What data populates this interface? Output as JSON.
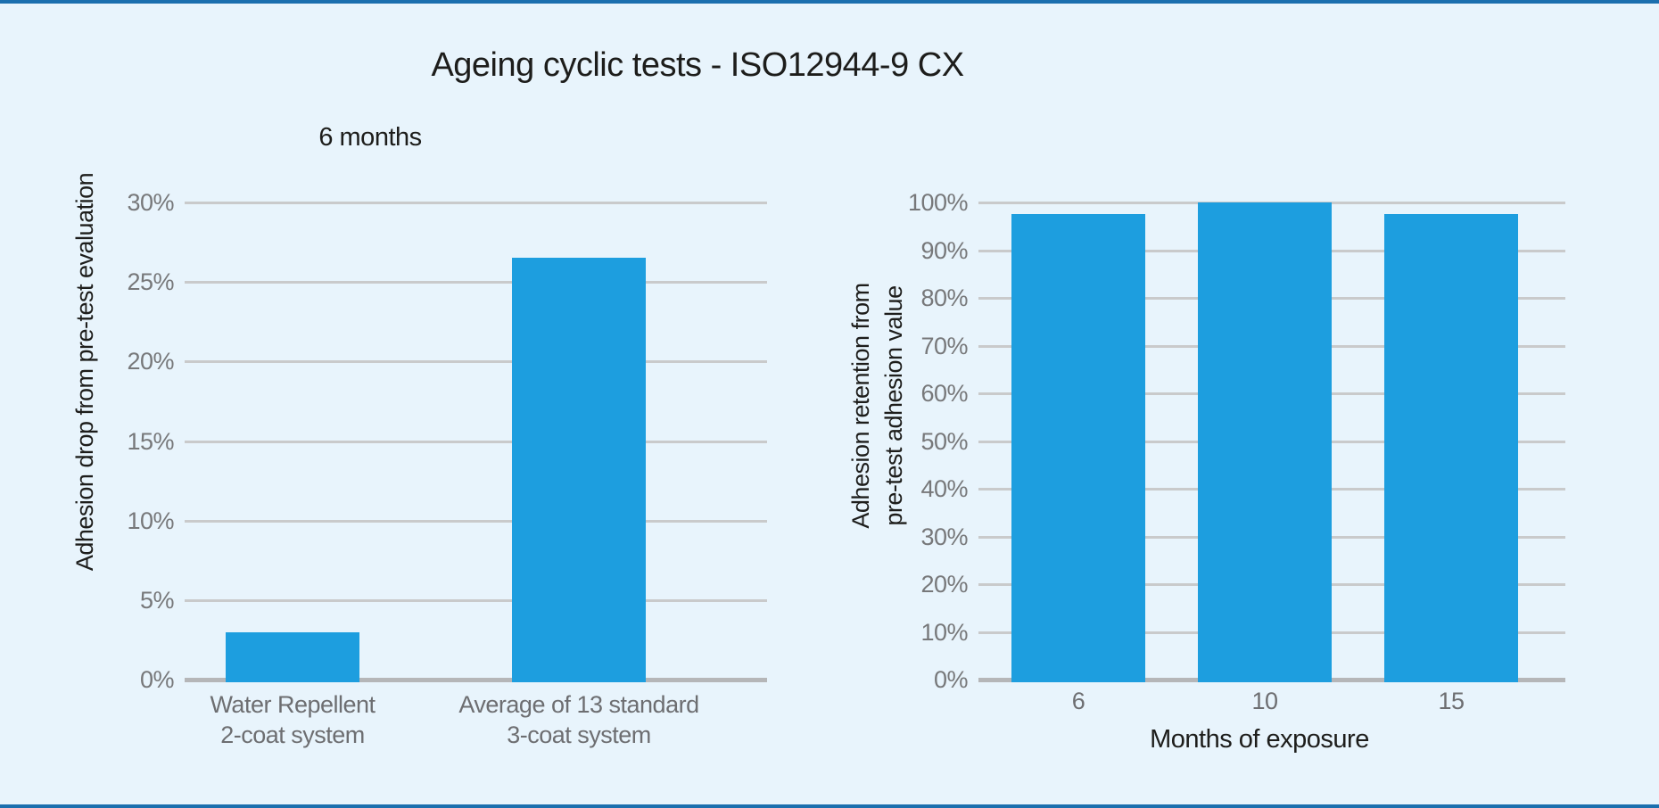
{
  "title": "Ageing cyclic tests - ISO12944-9 CX",
  "colors": {
    "background": "#e8f4fc",
    "bar": "#1d9edf",
    "gridline": "#c9cacb",
    "axis_line": "#b5b6b8",
    "tick_text": "#77787a",
    "category_text": "#6d6e71",
    "dark_text": "#1d1d1b",
    "frame_border": "#1b6fae"
  },
  "chart_data": [
    {
      "type": "bar",
      "title": "6 months",
      "xlabel": "",
      "ylabel": "Adhesion drop from pre-test evaluation",
      "categories": [
        "Water Repellent\n2-coat system",
        "Average of 13 standard\n3-coat system"
      ],
      "values": [
        3,
        26.5
      ],
      "ylim": [
        0,
        30
      ],
      "ytick_step": 5,
      "ytick_labels": [
        "0%",
        "5%",
        "10%",
        "15%",
        "20%",
        "25%",
        "30%"
      ],
      "grid": true,
      "legend": false,
      "bar_color": "#1d9edf"
    },
    {
      "type": "bar",
      "title": "",
      "xlabel": "Months of exposure",
      "ylabel": "Adhesion retention from\npre-test adhesion value",
      "categories": [
        "6",
        "10",
        "15"
      ],
      "values": [
        97.5,
        100,
        97.5
      ],
      "ylim": [
        0,
        100
      ],
      "ytick_step": 10,
      "ytick_labels": [
        "0%",
        "10%",
        "20%",
        "30%",
        "40%",
        "50%",
        "60%",
        "70%",
        "80%",
        "90%",
        "100%"
      ],
      "grid": true,
      "legend": false,
      "bar_color": "#1d9edf"
    }
  ]
}
